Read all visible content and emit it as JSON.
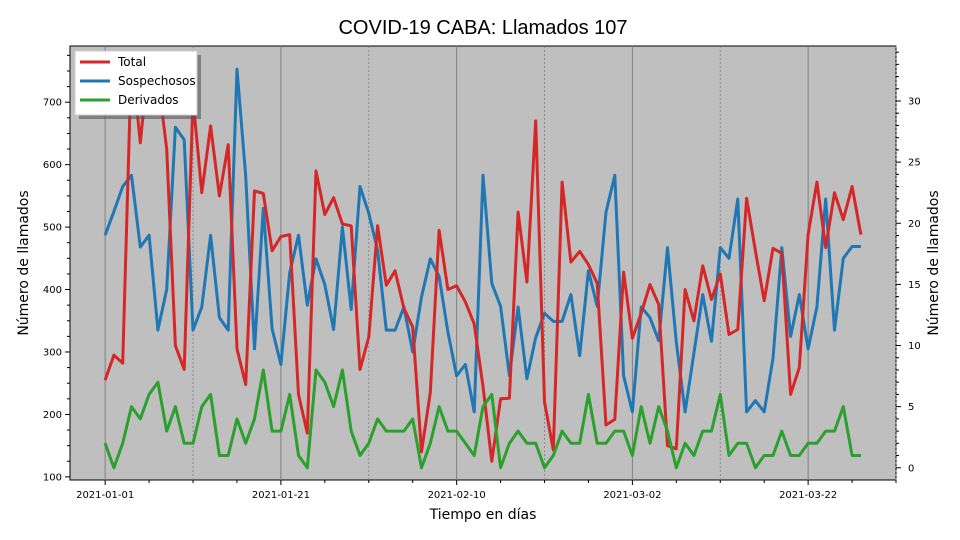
{
  "chart_data": {
    "type": "line",
    "title": "COVID-19 CABA: Llamados 107",
    "xlabel": "Tiempo en días",
    "ylabel": "Número de llamados",
    "ylabel_right": "Número de llamados",
    "x_ticks": [
      "2021-01-01",
      "2021-01-21",
      "2021-02-10",
      "2021-03-02",
      "2021-03-22"
    ],
    "y_ticks": [
      100,
      200,
      300,
      400,
      500,
      600,
      700
    ],
    "y2_ticks": [
      0,
      5,
      10,
      15,
      20,
      25,
      30
    ],
    "ylim": [
      95,
      790
    ],
    "y2lim": [
      -1,
      34.5
    ],
    "xlim": [
      "2020-12-28",
      "2021-04-01"
    ],
    "background_color": "#bfbfbf",
    "grid": "vertical",
    "legend_position": "top-left",
    "x_start": "2021-01-01",
    "series": [
      {
        "name": "Total",
        "color": "#d62728",
        "axis": "left",
        "values": [
          255,
          295,
          282,
          775,
          635,
          775,
          740,
          625,
          310,
          272,
          705,
          555,
          662,
          550,
          632,
          305,
          248,
          558,
          554,
          462,
          485,
          488,
          232,
          170,
          590,
          520,
          547,
          505,
          502,
          272,
          324,
          502,
          407,
          430,
          370,
          340,
          140,
          235,
          495,
          400,
          406,
          380,
          345,
          245,
          125,
          225,
          226,
          524,
          412,
          670,
          220,
          143,
          572,
          444,
          461,
          440,
          410,
          183,
          192,
          428,
          322,
          362,
          408,
          376,
          150,
          145,
          400,
          350,
          438,
          384,
          425,
          328,
          336,
          546,
          462,
          382,
          466,
          458,
          232,
          275,
          488,
          572,
          467,
          555,
          512,
          565,
          488
        ],
        "values_note_start": "2021-01-01"
      },
      {
        "name": "Sospechosos",
        "color": "#1f77b4",
        "axis": "left",
        "values": [
          487,
          525,
          565,
          583,
          468,
          487,
          335,
          400,
          660,
          640,
          335,
          372,
          487,
          355,
          335,
          753,
          582,
          305,
          530,
          337,
          280,
          427,
          487,
          375,
          449,
          408,
          336,
          500,
          368,
          565,
          522,
          463,
          335,
          335,
          372,
          300,
          388,
          449,
          421,
          332,
          262,
          280,
          204,
          583,
          410,
          373,
          262,
          372,
          257,
          323,
          362,
          349,
          349,
          392,
          294,
          430,
          373,
          524,
          583,
          262,
          204,
          372,
          355,
          318,
          467,
          316,
          204,
          298,
          392,
          317,
          467,
          450,
          545,
          204,
          222,
          204,
          290,
          467,
          325,
          392,
          305,
          372,
          545,
          335,
          450,
          469,
          469
        ]
      },
      {
        "name": "Derivados",
        "color": "#2ca02c",
        "axis": "right",
        "values": [
          2,
          0,
          2,
          5,
          4,
          6,
          7,
          3,
          5,
          2,
          2,
          5,
          6,
          1,
          1,
          4,
          2,
          4,
          8,
          3,
          3,
          6,
          1,
          0,
          8,
          7,
          5,
          8,
          3,
          1,
          2,
          4,
          3,
          3,
          3,
          4,
          0,
          2,
          5,
          3,
          3,
          2,
          1,
          5,
          6,
          0,
          2,
          3,
          2,
          2,
          0,
          1,
          3,
          2,
          2,
          6,
          2,
          2,
          3,
          3,
          1,
          5,
          2,
          5,
          3,
          0,
          2,
          1,
          3,
          3,
          6,
          1,
          2,
          2,
          0,
          1,
          1,
          3,
          1,
          1,
          2,
          2,
          3,
          3,
          5,
          1,
          1
        ]
      }
    ]
  }
}
